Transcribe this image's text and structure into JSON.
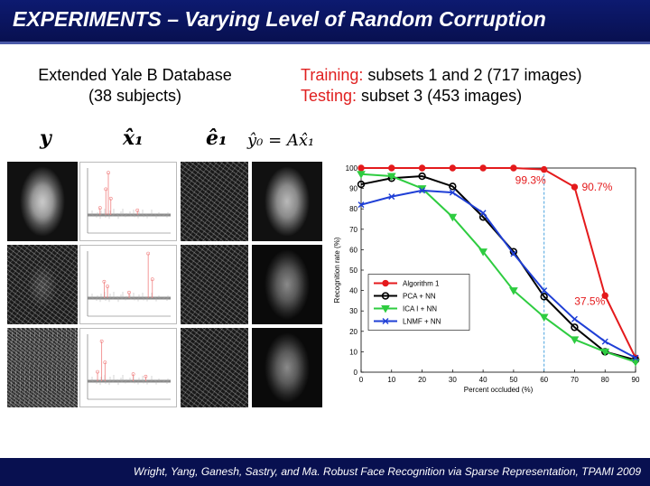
{
  "slide": {
    "title": "EXPERIMENTS – Varying Level of Random Corruption",
    "database_line1": "Extended Yale B Database",
    "database_line2": "(38 subjects)",
    "training_label": "Training:",
    "training_text": " subsets 1 and 2 (717 images)",
    "testing_label": "Testing:",
    "testing_text": " subset 3 (453 images)",
    "citation": "Wright, Yang, Ganesh, Sastry, and Ma. Robust Face Recognition via Sparse Representation, TPAMI 2009"
  },
  "columns": {
    "y": "y",
    "x1": "x̂₁",
    "e1": "ê₁",
    "y0": "ŷ₀ = Ax̂₁"
  },
  "colors": {
    "title_bg": "#0d1a70",
    "accent_red": "#e02020",
    "algorithm1": "#e41a1c",
    "pca": "#000000",
    "ica": "#2ecc40",
    "lnmf": "#1f3fd6",
    "dashed_line": "#4aa3df"
  },
  "chart_data": {
    "type": "line",
    "xlabel": "Percent occluded (%)",
    "ylabel": "Recognition rate (%)",
    "xlim": [
      0,
      90
    ],
    "ylim": [
      0,
      100
    ],
    "x_ticks": [
      0,
      10,
      20,
      30,
      40,
      50,
      60,
      70,
      80,
      90
    ],
    "y_ticks": [
      0,
      10,
      20,
      30,
      40,
      50,
      60,
      70,
      80,
      90,
      100
    ],
    "x": [
      0,
      10,
      20,
      30,
      40,
      50,
      60,
      70,
      80,
      90
    ],
    "grid": false,
    "legend_position": "bottom-left",
    "series": [
      {
        "name": "Algorithm 1",
        "values": [
          100,
          100,
          100,
          100,
          100,
          100,
          99.3,
          90.7,
          37.5,
          7
        ],
        "marker": "circle"
      },
      {
        "name": "PCA + NN",
        "values": [
          92,
          95,
          96,
          91,
          76,
          59,
          37,
          22,
          10,
          6
        ],
        "marker": "open-circle"
      },
      {
        "name": "ICA I + NN",
        "values": [
          97,
          96,
          90,
          76,
          59,
          40,
          27,
          16,
          10,
          5
        ],
        "marker": "triangle"
      },
      {
        "name": "LNMF + NN",
        "values": [
          82,
          86,
          89,
          88,
          78,
          58,
          40,
          26,
          15,
          7
        ],
        "marker": "cross"
      }
    ],
    "annotations": [
      {
        "text": "99.3%",
        "x": 60,
        "y": 99.3
      },
      {
        "text": "90.7%",
        "x": 70,
        "y": 90.7
      },
      {
        "text": "37.5%",
        "x": 80,
        "y": 37.5
      }
    ],
    "reference_line_x": 60
  },
  "stem_plots": [
    {
      "spikes": [
        {
          "x": 0.22,
          "h": 0.55
        },
        {
          "x": 0.25,
          "h": 0.9
        },
        {
          "x": 0.28,
          "h": 0.35
        },
        {
          "x": 0.15,
          "h": 0.15
        },
        {
          "x": 0.6,
          "h": 0.1
        }
      ]
    },
    {
      "spikes": [
        {
          "x": 0.2,
          "h": 0.35
        },
        {
          "x": 0.24,
          "h": 0.25
        },
        {
          "x": 0.73,
          "h": 0.95
        },
        {
          "x": 0.78,
          "h": 0.4
        },
        {
          "x": 0.5,
          "h": 0.12
        }
      ]
    },
    {
      "spikes": [
        {
          "x": 0.17,
          "h": 0.85
        },
        {
          "x": 0.21,
          "h": 0.4
        },
        {
          "x": 0.12,
          "h": 0.2
        },
        {
          "x": 0.55,
          "h": 0.15
        },
        {
          "x": 0.7,
          "h": 0.1
        }
      ]
    }
  ]
}
